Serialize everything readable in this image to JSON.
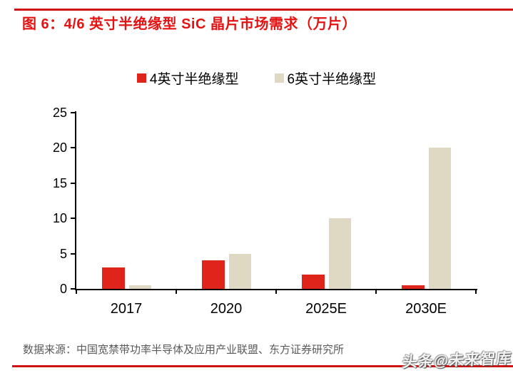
{
  "header": {
    "title": "图 6：4/6 英寸半绝缘型 SiC 晶片市场需求（万片）"
  },
  "chart_data": {
    "type": "bar",
    "title": "4/6 英寸半绝缘型 SiC 晶片市场需求（万片）",
    "categories": [
      "2017",
      "2020",
      "2025E",
      "2030E"
    ],
    "series": [
      {
        "name": "4英寸半绝缘型",
        "color": "#de241b",
        "values": [
          3,
          4,
          2,
          0.5
        ]
      },
      {
        "name": "6英寸半绝缘型",
        "color": "#dfd8c2",
        "values": [
          0.5,
          5,
          10,
          20
        ]
      }
    ],
    "xlabel": "",
    "ylabel": "",
    "ylim": [
      0,
      25
    ],
    "yticks": [
      0,
      5,
      10,
      15,
      20,
      25
    ],
    "grid": false,
    "legend_position": "top-center"
  },
  "footer": {
    "source": "数据来源：中国宽禁带功率半导体及应用产业联盟、东方证券研究所",
    "watermark": "头条@未来智库"
  },
  "theme": {
    "accent_rule": "#ce1312",
    "title_color": "#e41313",
    "axis_color": "#000000",
    "label_color": "#000000",
    "source_color": "#5a5a5a"
  }
}
